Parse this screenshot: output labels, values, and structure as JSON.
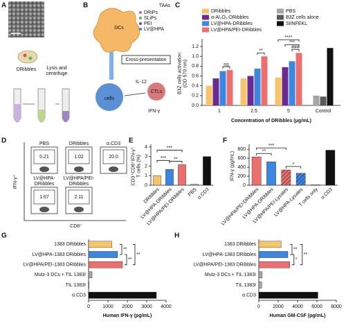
{
  "panel_a": {
    "panel": "A",
    "label": "DRibbles",
    "step": [
      "Lysis and",
      "centrifuge"
    ]
  },
  "panel_b": {
    "panel": "B",
    "labels": {
      "taas": "TAAs",
      "drips": "DRiPs",
      "slips": "SLiPs",
      "pei": "PEI",
      "lv": "LV@HPA",
      "dcs": "DCs",
      "cross": "Cross-presentation",
      "il12": "IL-12",
      "cells": "cells",
      "ctls": "CTLs",
      "ifn": "IFN-γ"
    }
  },
  "panel_d": {
    "panel": "D",
    "y_label": "IFN-γ⁺",
    "x_label": "CD8⁺",
    "plots": [
      {
        "name": [
          "PBS"
        ],
        "value": "0.21"
      },
      {
        "name": [
          "DRibbles"
        ],
        "value": "1.02"
      },
      {
        "name": [
          "α.CD3"
        ],
        "value": "20.0"
      },
      {
        "name": [
          "LV@HPA-",
          "DRibbles"
        ],
        "value": "1.67"
      },
      {
        "name": [
          "LV@HPA/PEI-",
          "DRibbles"
        ],
        "value": "2.11"
      }
    ]
  },
  "chart_data": [
    {
      "panel": "C",
      "type": "bar",
      "y_label": [
        "B3Z cells activation",
        "(OD 570 nm)"
      ],
      "x_label": "Concentration of DRibbles (μg/mL)",
      "categories": [
        "1",
        "2.5",
        "5",
        "Control"
      ],
      "legend": "top",
      "series": [
        {
          "name": "DRibbles",
          "color": "#f7c46c",
          "values": [
            0.4,
            0.55,
            0.57,
            null
          ]
        },
        {
          "name": "α-Al₂O₃-DRibbles",
          "color": "#6b2a8e",
          "values": [
            0.55,
            0.6,
            0.78,
            null
          ]
        },
        {
          "name": "LV@HPA-DRibbles",
          "color": "#3d86e0",
          "values": [
            0.7,
            0.75,
            0.9,
            null
          ]
        },
        {
          "name": "LV@HPA/PEI-DRibbles",
          "color": "#ec6f6f",
          "values": [
            0.72,
            1.0,
            1.07,
            null
          ]
        },
        {
          "name": "PBS",
          "color": "#a6a6a6",
          "values": [
            null,
            null,
            null,
            0.2
          ]
        },
        {
          "name": "B3Z cells alone",
          "color": "#595959",
          "values": [
            null,
            null,
            null,
            0.18
          ]
        },
        {
          "name": "SIINFEKL",
          "color": "#111111",
          "values": [
            null,
            null,
            null,
            1.17
          ]
        }
      ],
      "ylim": [
        0,
        1.3
      ],
      "yticks": [
        {
          "value": 0,
          "label": "0.0"
        },
        {
          "value": 0.2,
          "label": "0.2"
        },
        {
          "value": 0.4,
          "label": "0.4"
        },
        {
          "value": 0.6,
          "label": "0.6"
        },
        {
          "value": 0.8,
          "label": "0.8"
        },
        {
          "value": 1,
          "label": "1.0"
        },
        {
          "value": 1.2,
          "label": "1.2"
        }
      ],
      "annotations": [
        "ns",
        "**",
        "****",
        "***",
        "###"
      ]
    },
    {
      "panel": "E",
      "type": "bar",
      "y_label": [
        "CD3⁺CD8⁺IFN-γ⁺",
        "T cells (%)"
      ],
      "categories": [
        "DRibbles",
        "LV@HPA-DRibbles",
        "LV@HPA/PEI-DRibbles",
        "PBS",
        "α.CD3"
      ],
      "values": [
        1.0,
        1.65,
        2.15,
        0.1,
        3.0
      ],
      "colors": [
        "#f7c46c",
        "#3d86e0",
        "#ec6f6f",
        "#a6a6a6",
        "#111111"
      ],
      "ylim": [
        0,
        4
      ],
      "yticks": [
        0,
        1,
        2,
        3,
        4
      ],
      "annotations": [
        "***",
        "***",
        "**"
      ]
    },
    {
      "panel": "F",
      "type": "bar",
      "y_label": "IFN-γ (pg/mL)",
      "categories": [
        "LV@HPA/PEI-DRibbles",
        "LV@HPA-DRibbles",
        "LV@HPA/PEI-Lysates",
        "LV@HPA-Lysates",
        "T cells only",
        "α.CD3"
      ],
      "values": [
        630,
        520,
        340,
        265,
        10,
        780
      ],
      "colors": [
        "#ec6f6f",
        "#3d86e0",
        "#ec6f6f",
        "#3d86e0",
        "#a6a6a6",
        "#111111"
      ],
      "hatched": [
        false,
        false,
        true,
        true,
        false,
        false
      ],
      "ylim": [
        0,
        850
      ],
      "yticks": [
        0,
        200,
        400,
        600,
        800
      ],
      "annotations": [
        "***",
        "**",
        "*"
      ]
    },
    {
      "panel": "G",
      "type": "barh",
      "x_label": "Human IFN-γ (pg/mL)",
      "categories": [
        "1383 DRibbles",
        "LV@HPA-1383 DRibbles",
        "LV@HPA/PEI-1383 DRibbles",
        "Mutz-3 DCs + TIL 1383I",
        "TIL 1383I",
        "α.CD3"
      ],
      "values": [
        1200,
        1500,
        1750,
        180,
        30,
        3500
      ],
      "colors": [
        "#f7c46c",
        "#3d86e0",
        "#ec6f6f",
        "#a6a6a6",
        "#a6a6a6",
        "#111111"
      ],
      "xlim": [
        0,
        4000
      ],
      "xticks": [
        0,
        1000,
        2000,
        3000,
        4000
      ],
      "annotations": [
        "**",
        "**",
        "**"
      ]
    },
    {
      "panel": "H",
      "type": "barh",
      "x_label": "Human GM-CSF (pg/mL)",
      "categories": [
        "1383 DRibbles",
        "LV@HPA-1383 DRibbles",
        "LV@HPA/PEI-1383 DRibbles",
        "Mutz-3 DCs + TIL 1383I",
        "TIL 1383I",
        "α.CD3"
      ],
      "values": [
        2300,
        3000,
        3200,
        350,
        300,
        6100
      ],
      "colors": [
        "#f7c46c",
        "#3d86e0",
        "#ec6f6f",
        "#a6a6a6",
        "#a6a6a6",
        "#111111"
      ],
      "xlim": [
        0,
        8000
      ],
      "xticks": [
        0,
        2000,
        4000,
        6000,
        8000
      ],
      "annotations": [
        "**",
        "*",
        "**"
      ]
    }
  ]
}
